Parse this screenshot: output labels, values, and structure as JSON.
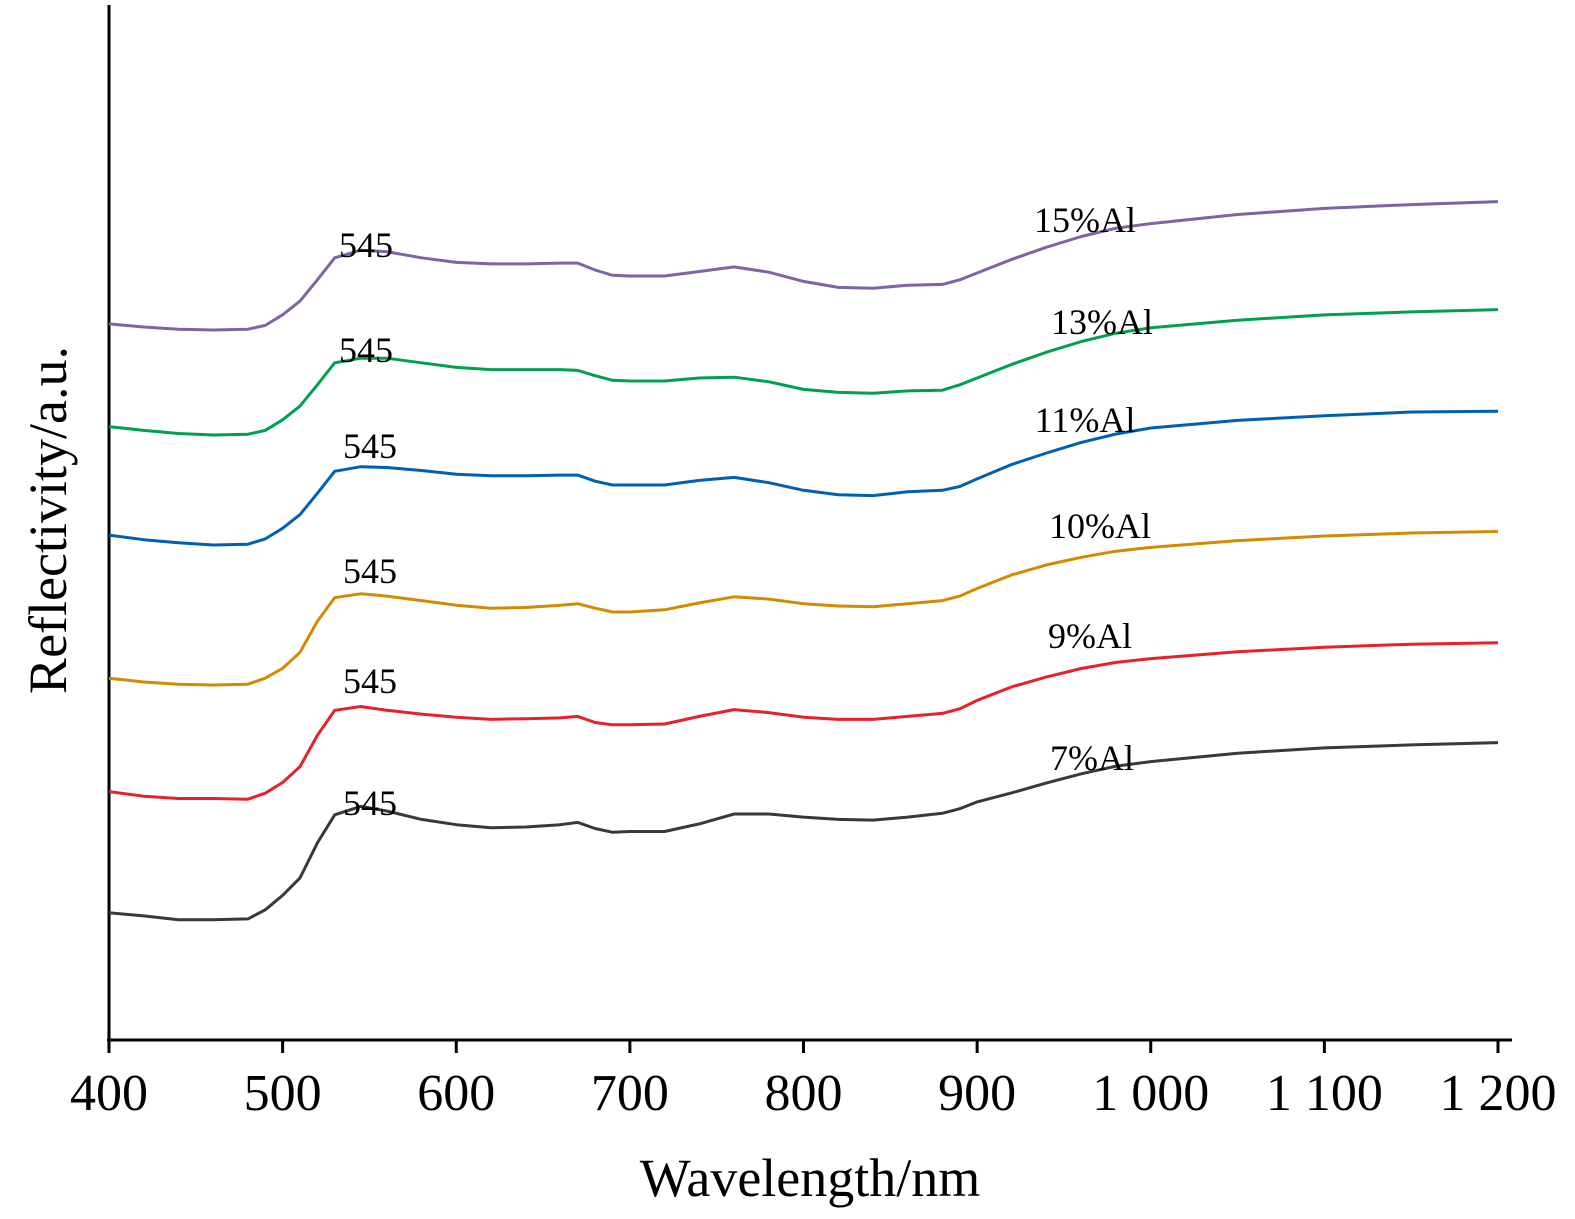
{
  "chart_data": {
    "type": "line",
    "title": "",
    "xlabel": "Wavelength/nm",
    "ylabel": "Reflectivity/a.u.",
    "xlim": [
      400,
      1200
    ],
    "xticks": [
      400,
      500,
      600,
      700,
      800,
      900,
      1000,
      1100,
      1200
    ],
    "xtick_labels": [
      "400",
      "500",
      "600",
      "700",
      "800",
      "900",
      "1 000",
      "1 100",
      "1 200"
    ],
    "y_ticks_shown": false,
    "grid": false,
    "legend": "none",
    "series": [
      {
        "name": "15%Al",
        "color": "#8064A2",
        "peak_label": "545",
        "points": [
          [
            400,
            0.8
          ],
          [
            420,
            0.4
          ],
          [
            440,
            0.1
          ],
          [
            460,
            0.0
          ],
          [
            480,
            0.1
          ],
          [
            490,
            0.6
          ],
          [
            500,
            2.0
          ],
          [
            510,
            3.8
          ],
          [
            520,
            6.6
          ],
          [
            530,
            9.5
          ],
          [
            545,
            10.5
          ],
          [
            560,
            10.3
          ],
          [
            580,
            9.5
          ],
          [
            600,
            8.9
          ],
          [
            620,
            8.7
          ],
          [
            640,
            8.7
          ],
          [
            660,
            8.8
          ],
          [
            670,
            8.8
          ],
          [
            680,
            7.9
          ],
          [
            690,
            7.2
          ],
          [
            700,
            7.1
          ],
          [
            720,
            7.1
          ],
          [
            740,
            7.7
          ],
          [
            760,
            8.3
          ],
          [
            780,
            7.6
          ],
          [
            800,
            6.4
          ],
          [
            820,
            5.6
          ],
          [
            840,
            5.5
          ],
          [
            860,
            5.9
          ],
          [
            880,
            6.0
          ],
          [
            890,
            6.6
          ],
          [
            900,
            7.5
          ],
          [
            920,
            9.3
          ],
          [
            940,
            10.9
          ],
          [
            960,
            12.3
          ],
          [
            980,
            13.4
          ],
          [
            1000,
            14.0
          ],
          [
            1050,
            15.2
          ],
          [
            1100,
            16.0
          ],
          [
            1150,
            16.5
          ],
          [
            1200,
            16.9
          ]
        ]
      },
      {
        "name": "13%Al",
        "color": "#00A050",
        "peak_label": "545",
        "points": [
          [
            400,
            1.1
          ],
          [
            420,
            0.6
          ],
          [
            440,
            0.2
          ],
          [
            460,
            0.0
          ],
          [
            480,
            0.1
          ],
          [
            490,
            0.6
          ],
          [
            500,
            2.0
          ],
          [
            510,
            3.8
          ],
          [
            520,
            6.6
          ],
          [
            530,
            9.5
          ],
          [
            545,
            10.1
          ],
          [
            560,
            10.1
          ],
          [
            580,
            9.5
          ],
          [
            600,
            8.9
          ],
          [
            620,
            8.6
          ],
          [
            640,
            8.6
          ],
          [
            660,
            8.6
          ],
          [
            670,
            8.5
          ],
          [
            680,
            7.8
          ],
          [
            690,
            7.2
          ],
          [
            700,
            7.1
          ],
          [
            720,
            7.1
          ],
          [
            740,
            7.5
          ],
          [
            760,
            7.6
          ],
          [
            780,
            7.0
          ],
          [
            800,
            6.0
          ],
          [
            820,
            5.6
          ],
          [
            840,
            5.5
          ],
          [
            860,
            5.8
          ],
          [
            880,
            5.9
          ],
          [
            890,
            6.6
          ],
          [
            900,
            7.5
          ],
          [
            920,
            9.3
          ],
          [
            940,
            10.9
          ],
          [
            960,
            12.3
          ],
          [
            980,
            13.4
          ],
          [
            1000,
            14.1
          ],
          [
            1050,
            15.1
          ],
          [
            1100,
            15.8
          ],
          [
            1150,
            16.2
          ],
          [
            1200,
            16.5
          ]
        ]
      },
      {
        "name": "11%Al",
        "color": "#0060B0",
        "peak_label": "545",
        "points": [
          [
            400,
            1.3
          ],
          [
            420,
            0.7
          ],
          [
            440,
            0.3
          ],
          [
            460,
            0.0
          ],
          [
            480,
            0.1
          ],
          [
            490,
            0.8
          ],
          [
            500,
            2.2
          ],
          [
            510,
            4.0
          ],
          [
            520,
            6.8
          ],
          [
            530,
            9.7
          ],
          [
            545,
            10.3
          ],
          [
            560,
            10.2
          ],
          [
            580,
            9.8
          ],
          [
            600,
            9.3
          ],
          [
            620,
            9.1
          ],
          [
            640,
            9.1
          ],
          [
            660,
            9.2
          ],
          [
            670,
            9.2
          ],
          [
            680,
            8.4
          ],
          [
            690,
            7.9
          ],
          [
            700,
            7.9
          ],
          [
            720,
            7.9
          ],
          [
            740,
            8.5
          ],
          [
            760,
            8.9
          ],
          [
            780,
            8.2
          ],
          [
            800,
            7.2
          ],
          [
            820,
            6.6
          ],
          [
            840,
            6.5
          ],
          [
            860,
            7.0
          ],
          [
            880,
            7.2
          ],
          [
            890,
            7.7
          ],
          [
            900,
            8.7
          ],
          [
            920,
            10.6
          ],
          [
            940,
            12.1
          ],
          [
            960,
            13.5
          ],
          [
            980,
            14.6
          ],
          [
            1000,
            15.4
          ],
          [
            1050,
            16.4
          ],
          [
            1100,
            17.0
          ],
          [
            1150,
            17.5
          ],
          [
            1200,
            17.6
          ]
        ]
      },
      {
        "name": "10%Al",
        "color": "#D18B00",
        "peak_label": "545",
        "points": [
          [
            400,
            0.9
          ],
          [
            420,
            0.4
          ],
          [
            440,
            0.1
          ],
          [
            460,
            0.0
          ],
          [
            480,
            0.1
          ],
          [
            490,
            0.9
          ],
          [
            500,
            2.2
          ],
          [
            510,
            4.3
          ],
          [
            520,
            8.4
          ],
          [
            530,
            11.5
          ],
          [
            545,
            12.0
          ],
          [
            560,
            11.7
          ],
          [
            580,
            11.1
          ],
          [
            600,
            10.5
          ],
          [
            620,
            10.1
          ],
          [
            640,
            10.2
          ],
          [
            660,
            10.5
          ],
          [
            670,
            10.7
          ],
          [
            680,
            10.1
          ],
          [
            690,
            9.6
          ],
          [
            700,
            9.6
          ],
          [
            720,
            9.9
          ],
          [
            740,
            10.8
          ],
          [
            760,
            11.6
          ],
          [
            780,
            11.3
          ],
          [
            800,
            10.7
          ],
          [
            820,
            10.4
          ],
          [
            840,
            10.3
          ],
          [
            860,
            10.7
          ],
          [
            880,
            11.1
          ],
          [
            890,
            11.7
          ],
          [
            900,
            12.7
          ],
          [
            920,
            14.5
          ],
          [
            940,
            15.8
          ],
          [
            960,
            16.8
          ],
          [
            980,
            17.6
          ],
          [
            1000,
            18.1
          ],
          [
            1050,
            19.0
          ],
          [
            1100,
            19.6
          ],
          [
            1150,
            20.0
          ],
          [
            1200,
            20.2
          ]
        ]
      },
      {
        "name": "9%Al",
        "color": "#E8202A",
        "peak_label": "545",
        "points": [
          [
            400,
            1.1
          ],
          [
            420,
            0.5
          ],
          [
            440,
            0.2
          ],
          [
            460,
            0.2
          ],
          [
            480,
            0.1
          ],
          [
            490,
            0.9
          ],
          [
            500,
            2.3
          ],
          [
            510,
            4.4
          ],
          [
            520,
            8.5
          ],
          [
            530,
            11.8
          ],
          [
            545,
            12.3
          ],
          [
            560,
            11.8
          ],
          [
            580,
            11.3
          ],
          [
            600,
            10.9
          ],
          [
            620,
            10.6
          ],
          [
            640,
            10.7
          ],
          [
            660,
            10.8
          ],
          [
            670,
            11.0
          ],
          [
            680,
            10.2
          ],
          [
            690,
            9.9
          ],
          [
            700,
            9.9
          ],
          [
            720,
            10.0
          ],
          [
            740,
            11.0
          ],
          [
            760,
            11.9
          ],
          [
            780,
            11.5
          ],
          [
            800,
            10.9
          ],
          [
            820,
            10.6
          ],
          [
            840,
            10.6
          ],
          [
            860,
            11.0
          ],
          [
            880,
            11.4
          ],
          [
            890,
            12.0
          ],
          [
            900,
            13.1
          ],
          [
            920,
            14.9
          ],
          [
            940,
            16.2
          ],
          [
            960,
            17.3
          ],
          [
            980,
            18.1
          ],
          [
            1000,
            18.6
          ],
          [
            1050,
            19.5
          ],
          [
            1100,
            20.1
          ],
          [
            1150,
            20.5
          ],
          [
            1200,
            20.7
          ]
        ]
      },
      {
        "name": "7%Al",
        "color": "#333B3F",
        "peak_label": "545",
        "points": [
          [
            400,
            1.6
          ],
          [
            420,
            1.2
          ],
          [
            440,
            0.7
          ],
          [
            460,
            0.7
          ],
          [
            480,
            0.8
          ],
          [
            490,
            2.0
          ],
          [
            500,
            3.9
          ],
          [
            510,
            6.2
          ],
          [
            520,
            10.8
          ],
          [
            530,
            14.5
          ],
          [
            545,
            15.6
          ],
          [
            560,
            15.0
          ],
          [
            580,
            13.9
          ],
          [
            600,
            13.2
          ],
          [
            620,
            12.8
          ],
          [
            640,
            12.9
          ],
          [
            660,
            13.2
          ],
          [
            670,
            13.5
          ],
          [
            680,
            12.7
          ],
          [
            690,
            12.2
          ],
          [
            700,
            12.3
          ],
          [
            720,
            12.3
          ],
          [
            740,
            13.3
          ],
          [
            760,
            14.6
          ],
          [
            780,
            14.6
          ],
          [
            800,
            14.2
          ],
          [
            820,
            13.9
          ],
          [
            840,
            13.8
          ],
          [
            860,
            14.2
          ],
          [
            880,
            14.7
          ],
          [
            890,
            15.3
          ],
          [
            900,
            16.2
          ],
          [
            920,
            17.4
          ],
          [
            940,
            18.7
          ],
          [
            960,
            19.9
          ],
          [
            980,
            20.9
          ],
          [
            1000,
            21.5
          ],
          [
            1050,
            22.6
          ],
          [
            1100,
            23.3
          ],
          [
            1150,
            23.7
          ],
          [
            1200,
            24.0
          ]
        ]
      }
    ]
  }
}
